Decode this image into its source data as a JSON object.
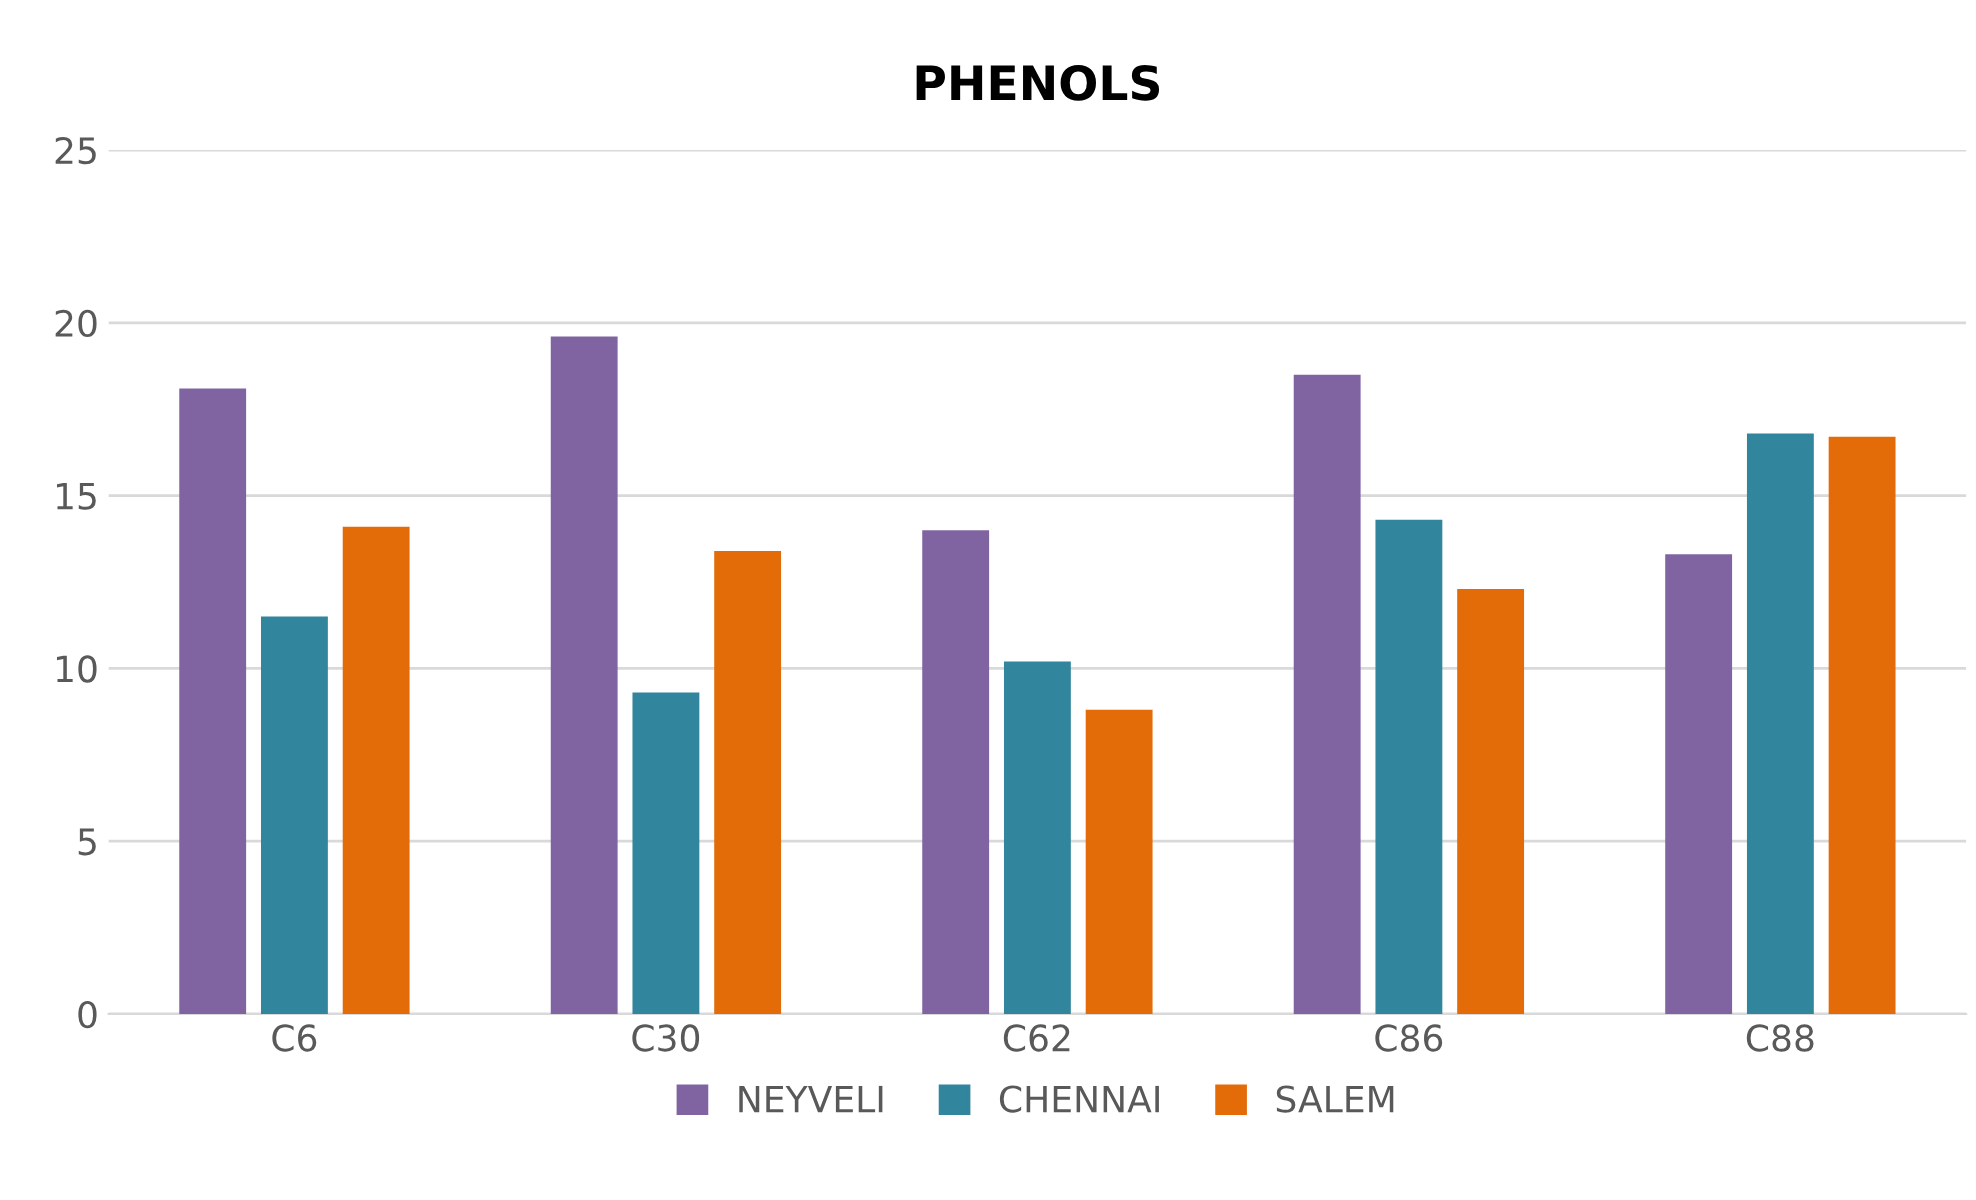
{
  "chart_data": {
    "type": "bar",
    "title": "PHENOLS",
    "categories": [
      "C6",
      "C30",
      "C62",
      "C86",
      "C88"
    ],
    "series": [
      {
        "name": "NEYVELI",
        "color": "#8064a2",
        "values": [
          18.1,
          19.6,
          14.0,
          18.5,
          13.3
        ]
      },
      {
        "name": "CHENNAI",
        "color": "#31859c",
        "values": [
          11.5,
          9.3,
          10.2,
          14.3,
          16.8
        ]
      },
      {
        "name": "SALEM",
        "color": "#e36c09",
        "values": [
          14.1,
          13.4,
          8.8,
          12.3,
          16.7
        ]
      }
    ],
    "ylim": [
      0,
      25
    ],
    "yticks": [
      0,
      5,
      10,
      15,
      20,
      25
    ],
    "grid": "y",
    "legend": "bottom"
  }
}
